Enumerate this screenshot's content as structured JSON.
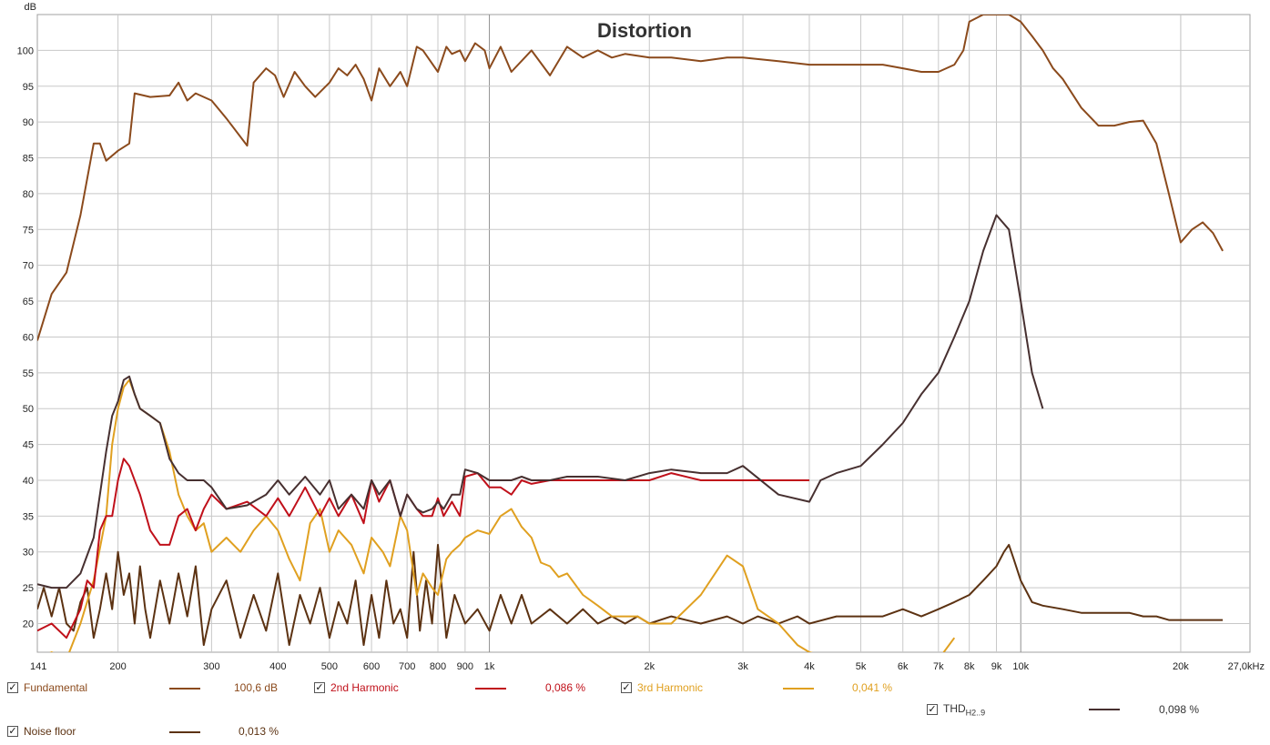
{
  "chart_data": {
    "type": "line",
    "title": "Distortion",
    "ylabel": "dB",
    "xlim": [
      141,
      27000
    ],
    "ylim": [
      16,
      105
    ],
    "xscale": "log",
    "grid": true,
    "x_ticks": [
      "141",
      "200",
      "300",
      "400",
      "500",
      "600",
      "700",
      "800",
      "900",
      "1k",
      "2k",
      "3k",
      "4k",
      "5k",
      "6k",
      "7k",
      "8k",
      "9k",
      "10k",
      "20k",
      "27,0kHz"
    ],
    "y_ticks": [
      "20",
      "25",
      "30",
      "35",
      "40",
      "45",
      "50",
      "55",
      "60",
      "65",
      "70",
      "75",
      "80",
      "85",
      "90",
      "95",
      "100"
    ],
    "series": [
      {
        "name": "Fundamental",
        "color": "#8B4A1C",
        "value_label": "100,6 dB",
        "x": [
          141,
          150,
          160,
          170,
          180,
          185,
          190,
          200,
          210,
          215,
          230,
          250,
          260,
          270,
          280,
          300,
          320,
          350,
          360,
          380,
          395,
          410,
          430,
          450,
          470,
          500,
          520,
          540,
          560,
          580,
          600,
          620,
          650,
          680,
          700,
          730,
          750,
          800,
          830,
          850,
          880,
          900,
          940,
          980,
          1000,
          1050,
          1100,
          1200,
          1300,
          1400,
          1500,
          1600,
          1700,
          1800,
          2000,
          2200,
          2500,
          2800,
          3000,
          3500,
          4000,
          4500,
          5000,
          5500,
          6000,
          6500,
          7000,
          7500,
          7800,
          8000,
          8500,
          9000,
          9500,
          10000,
          10500,
          11000,
          11500,
          12000,
          13000,
          14000,
          15000,
          16000,
          17000,
          18000,
          19000,
          20000,
          21000,
          22000,
          23000,
          24000
        ],
        "y": [
          59.5,
          66,
          69,
          77,
          87,
          87,
          84.6,
          86,
          87,
          94,
          93.5,
          93.7,
          95.5,
          93,
          94,
          93,
          90.5,
          86.7,
          95.5,
          97.5,
          96.5,
          93.5,
          97,
          95,
          93.5,
          95.5,
          97.5,
          96.5,
          98,
          96,
          93,
          97.5,
          95,
          97,
          95,
          100.5,
          100,
          97,
          100.5,
          99.5,
          100,
          98.5,
          101,
          100,
          97.5,
          100.5,
          97,
          100,
          96.5,
          100.5,
          99,
          100,
          99,
          99.5,
          99,
          99,
          98.5,
          99,
          99,
          98.5,
          98,
          98,
          98,
          98,
          97.5,
          97,
          97,
          98,
          100,
          104,
          105,
          105,
          105,
          104,
          102,
          100,
          97.5,
          96,
          92,
          89.5,
          89.5,
          90,
          90.2,
          87,
          80,
          73.2,
          75,
          76,
          74.5,
          72
        ]
      },
      {
        "name": "2nd Harmonic",
        "color": "#C0101A",
        "value_label": "0,086 %",
        "x": [
          141,
          150,
          160,
          170,
          175,
          180,
          185,
          190,
          195,
          200,
          205,
          210,
          220,
          230,
          240,
          250,
          260,
          270,
          280,
          290,
          300,
          320,
          350,
          380,
          400,
          420,
          450,
          480,
          500,
          520,
          550,
          580,
          600,
          620,
          650,
          680,
          700,
          730,
          750,
          780,
          800,
          820,
          850,
          880,
          900,
          950,
          1000,
          1050,
          1100,
          1150,
          1200,
          1300,
          1400,
          1500,
          1600,
          1800,
          2000,
          2200,
          2500,
          2800,
          3000,
          3500,
          4000
        ],
        "y": [
          19,
          20,
          18,
          22,
          26,
          25,
          33,
          35,
          35,
          40,
          43,
          42,
          38,
          33,
          31,
          31,
          35,
          36,
          33,
          36,
          38,
          36,
          37,
          35,
          37.5,
          35,
          39,
          35,
          37.5,
          35,
          38,
          34,
          40,
          37,
          40,
          35,
          38,
          36,
          35,
          35,
          37.5,
          35,
          37,
          35,
          40.5,
          41,
          39,
          39,
          38,
          40,
          39.5,
          40,
          40,
          40,
          40,
          40,
          40,
          41,
          40,
          40,
          40,
          40,
          40
        ]
      },
      {
        "name": "3rd Harmonic",
        "color": "#E0A020",
        "value_label": "0,041 %",
        "x": [
          141,
          150,
          160,
          170,
          180,
          190,
          195,
          200,
          205,
          210,
          215,
          220,
          230,
          240,
          250,
          260,
          270,
          280,
          290,
          300,
          320,
          340,
          360,
          380,
          400,
          420,
          440,
          460,
          480,
          500,
          520,
          550,
          580,
          600,
          630,
          650,
          680,
          700,
          730,
          750,
          780,
          800,
          830,
          850,
          880,
          900,
          950,
          1000,
          1050,
          1100,
          1150,
          1200,
          1250,
          1300,
          1350,
          1400,
          1500,
          1600,
          1700,
          1800,
          1900,
          2000,
          2200,
          2500,
          2800,
          3000,
          3200,
          3500,
          3800,
          4000,
          4500,
          5000,
          5500,
          6000,
          6500,
          7000,
          7500
        ],
        "y": [
          15,
          16,
          15,
          20,
          26,
          35,
          45,
          50,
          53,
          54,
          52,
          50,
          49,
          48,
          44,
          38,
          35,
          33,
          34,
          30,
          32,
          30,
          33,
          35,
          33,
          29,
          26,
          34,
          36,
          30,
          33,
          31,
          27,
          32,
          30,
          28,
          35,
          33,
          24,
          27,
          25,
          24,
          29,
          30,
          31,
          32,
          33,
          32.5,
          35,
          36,
          33.5,
          32,
          28.5,
          28,
          26.5,
          27,
          24,
          22.5,
          21,
          21,
          21,
          20,
          20,
          24,
          29.5,
          28,
          22,
          20,
          17,
          16,
          15,
          15,
          15,
          15,
          15,
          15,
          18
        ]
      },
      {
        "name": "THD H2..9",
        "color": "#473030",
        "value_label": "0,098 %",
        "x": [
          141,
          150,
          160,
          170,
          180,
          190,
          195,
          200,
          205,
          210,
          215,
          220,
          230,
          240,
          250,
          260,
          270,
          280,
          290,
          300,
          320,
          350,
          380,
          400,
          420,
          450,
          480,
          500,
          520,
          550,
          580,
          600,
          620,
          650,
          680,
          700,
          730,
          750,
          780,
          800,
          820,
          850,
          880,
          900,
          950,
          1000,
          1050,
          1100,
          1150,
          1200,
          1300,
          1400,
          1500,
          1600,
          1800,
          2000,
          2200,
          2500,
          2800,
          3000,
          3500,
          4000,
          4100,
          4200,
          4500,
          5000,
          5500,
          6000,
          6500,
          7000,
          7500,
          8000,
          8500,
          9000,
          9500,
          10000,
          10500,
          11000
        ],
        "y": [
          25.5,
          25,
          25,
          27,
          32,
          44,
          49,
          51,
          54,
          54.5,
          52,
          50,
          49,
          48,
          43,
          41,
          40,
          40,
          40,
          39,
          36,
          36.5,
          38,
          40,
          38,
          40.5,
          38,
          40,
          36,
          38,
          36,
          40,
          38,
          40,
          35,
          38,
          36,
          35.5,
          36,
          37,
          36,
          38,
          38,
          41.5,
          41,
          40,
          40,
          40,
          40.5,
          40,
          40,
          40.5,
          40.5,
          40.5,
          40,
          41,
          41.5,
          41,
          41,
          42,
          38,
          37,
          38.5,
          40,
          41,
          42,
          45,
          48,
          52,
          55,
          60,
          65,
          72,
          77,
          75,
          65,
          55,
          50
        ]
      },
      {
        "name": "Noise floor",
        "color": "#5C3212",
        "value_label": "0,013 %",
        "x": [
          141,
          145,
          150,
          155,
          160,
          165,
          170,
          175,
          180,
          185,
          190,
          195,
          200,
          205,
          210,
          215,
          220,
          225,
          230,
          240,
          250,
          260,
          270,
          280,
          290,
          300,
          320,
          340,
          360,
          380,
          400,
          420,
          440,
          460,
          480,
          500,
          520,
          540,
          560,
          580,
          600,
          620,
          640,
          660,
          680,
          700,
          720,
          740,
          760,
          780,
          800,
          830,
          860,
          900,
          950,
          1000,
          1050,
          1100,
          1150,
          1200,
          1300,
          1400,
          1500,
          1600,
          1700,
          1800,
          1900,
          2000,
          2200,
          2500,
          2800,
          3000,
          3200,
          3500,
          3800,
          4000,
          4500,
          5000,
          5500,
          6000,
          6500,
          7000,
          7500,
          8000,
          8500,
          9000,
          9300,
          9500,
          9700,
          10000,
          10500,
          11000,
          12000,
          13000,
          14000,
          15000,
          16000,
          17000,
          18000,
          19000,
          20000,
          21000,
          22000,
          23000,
          24000
        ],
        "y": [
          22,
          25,
          21,
          25,
          20,
          19,
          23,
          25,
          18,
          22,
          27,
          22,
          30,
          24,
          27,
          20,
          28,
          22,
          18,
          26,
          20,
          27,
          21,
          28,
          17,
          22,
          26,
          18,
          24,
          19,
          27,
          17,
          24,
          20,
          25,
          18,
          23,
          20,
          26,
          17,
          24,
          18,
          26,
          20,
          22,
          18,
          30,
          19,
          26,
          20,
          31,
          18,
          24,
          20,
          22,
          19,
          24,
          20,
          24,
          20,
          22,
          20,
          22,
          20,
          21,
          20,
          21,
          20,
          21,
          20,
          21,
          20,
          21,
          20,
          21,
          20,
          21,
          21,
          21,
          22,
          21,
          22,
          23,
          24,
          26,
          28,
          30,
          31,
          29,
          26,
          23,
          22.5,
          22,
          21.5,
          21.5,
          21.5,
          21.5,
          21,
          21,
          20.5,
          20.5,
          20.5,
          20.5,
          20.5,
          20.5
        ]
      }
    ]
  },
  "legend": {
    "fundamental": "Fundamental",
    "fundamental_value": "100,6 dB",
    "h2": "2nd Harmonic",
    "h2_value": "0,086 %",
    "h3": "3rd Harmonic",
    "h3_value": "0,041 %",
    "thd": "THD",
    "thd_sub": "H2..9",
    "thd_value": "0,098 %",
    "noise": "Noise floor",
    "noise_value": "0,013 %"
  },
  "colors": {
    "background": "#FFFFFF",
    "grid": "#C8C8C8",
    "grid_major": "#909090",
    "frame": "#A0A0A0"
  }
}
